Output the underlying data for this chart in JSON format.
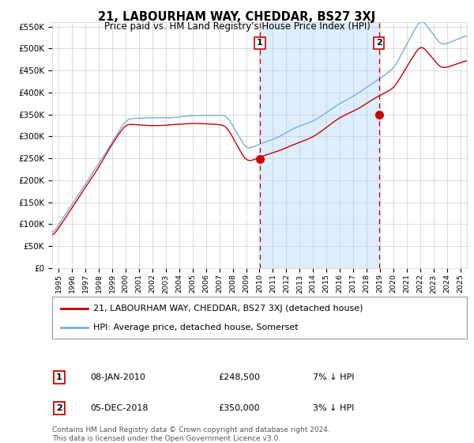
{
  "title": "21, LABOURHAM WAY, CHEDDAR, BS27 3XJ",
  "subtitle": "Price paid vs. HM Land Registry's House Price Index (HPI)",
  "legend_line1": "21, LABOURHAM WAY, CHEDDAR, BS27 3XJ (detached house)",
  "legend_line2": "HPI: Average price, detached house, Somerset",
  "annotation1_label": "1",
  "annotation1_date": "08-JAN-2010",
  "annotation1_price": "£248,500",
  "annotation1_hpi": "7% ↓ HPI",
  "annotation2_label": "2",
  "annotation2_date": "05-DEC-2018",
  "annotation2_price": "£350,000",
  "annotation2_hpi": "3% ↓ HPI",
  "footer1": "Contains HM Land Registry data © Crown copyright and database right 2024.",
  "footer2": "This data is licensed under the Open Government Licence v3.0.",
  "sale1_x": 2010.03,
  "sale1_y": 248500,
  "sale2_x": 2018.92,
  "sale2_y": 350000,
  "vline1_x": 2010.03,
  "vline2_x": 2018.92,
  "shade_x1": 2010.03,
  "shade_x2": 2018.92,
  "ylim": [
    0,
    560000
  ],
  "xlim_start": 1994.5,
  "xlim_end": 2025.5,
  "yticks": [
    0,
    50000,
    100000,
    150000,
    200000,
    250000,
    300000,
    350000,
    400000,
    450000,
    500000,
    550000
  ],
  "ytick_labels": [
    "£0",
    "£50K",
    "£100K",
    "£150K",
    "£200K",
    "£250K",
    "£300K",
    "£350K",
    "£400K",
    "£450K",
    "£500K",
    "£550K"
  ],
  "xticks": [
    1995,
    1996,
    1997,
    1998,
    1999,
    2000,
    2001,
    2002,
    2003,
    2004,
    2005,
    2006,
    2007,
    2008,
    2009,
    2010,
    2011,
    2012,
    2013,
    2014,
    2015,
    2016,
    2017,
    2018,
    2019,
    2020,
    2021,
    2022,
    2023,
    2024,
    2025
  ],
  "red_color": "#cc0000",
  "blue_color": "#7aaddc",
  "shade_color": "#ddeeff",
  "vline_color": "#cc0000",
  "grid_color": "#cccccc",
  "bg_color": "#ffffff",
  "plot_bg": "#ffffff"
}
